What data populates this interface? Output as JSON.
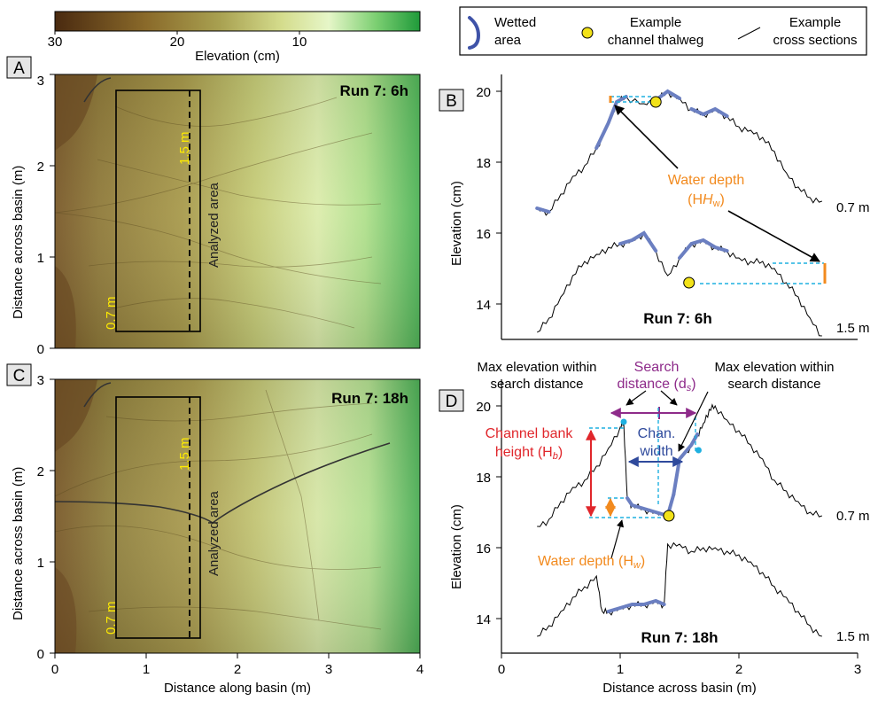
{
  "colorbar": {
    "ticks": [
      "30",
      "20",
      "10"
    ],
    "tick_values": [
      30,
      20,
      10
    ],
    "label": "Elevation (cm)"
  },
  "legend": {
    "wetted": "Wetted\narea",
    "wetted_l1": "Wetted",
    "wetted_l2": "area",
    "thalweg_l1": "Example",
    "thalweg_l2": "channel thalweg",
    "xsec_l1": "Example",
    "xsec_l2": "cross sections"
  },
  "panels": {
    "A": {
      "letter": "A",
      "run": "Run 7: 6h"
    },
    "B": {
      "letter": "B",
      "run": "Run 7: 6h"
    },
    "C": {
      "letter": "C",
      "run": "Run 7: 18h"
    },
    "D": {
      "letter": "D",
      "run": "Run 7: 18h"
    }
  },
  "map_labels": {
    "xsec_07": "0.7 m",
    "xsec_15": "1.5 m",
    "analyzed": "Analyzed area",
    "y_axis": "Distance across basin (m)",
    "x_axis": "Distance along basin (m)",
    "y_ticks": [
      "0",
      "1",
      "2",
      "3"
    ],
    "x_ticks": [
      "0",
      "1",
      "2",
      "3",
      "4"
    ]
  },
  "profile_labels": {
    "y_axis": "Elevation (cm)",
    "x_axis": "Distance across basin (m)",
    "x_ticks": [
      "0",
      "1",
      "2",
      "3"
    ],
    "y_ticks": [
      "14",
      "16",
      "18",
      "20"
    ],
    "curve_07": "0.7 m",
    "curve_15": "1.5 m"
  },
  "annotations_B": {
    "water_depth_l1": "Water depth",
    "water_depth_l2": "(H",
    "water_depth_sub": "w",
    "water_depth_close": ")"
  },
  "annotations_D": {
    "max_elev_left_l1": "Max elevation within",
    "max_elev_left_l2": "search distance",
    "max_elev_right_l1": "Max elevation within",
    "max_elev_right_l2": "search distance",
    "search_l1": "Search",
    "search_l2": "distance (d",
    "search_sub": "s",
    "search_close": ")",
    "bank_l1": "Channel bank",
    "bank_l2": "height (H",
    "bank_sub": "b",
    "bank_close": ")",
    "chan_l1": "Chan.",
    "chan_l2": "width",
    "water_depth": "Water depth (H",
    "water_depth_sub": "w",
    "water_depth_close": ")"
  },
  "colors": {
    "wetted": "#6b7fc1",
    "thalweg": "#f2e218",
    "water_depth": "#f28a1e",
    "dashed": "#1fb0e0",
    "bank": "#e0262b",
    "search": "#8e2b8a",
    "chan_width": "#2f4a9c"
  },
  "chart_data": [
    {
      "panel": "B",
      "type": "line",
      "xlabel": "Distance across basin (m)",
      "ylabel": "Elevation (cm)",
      "xlim": [
        0,
        3
      ],
      "ylim": [
        13,
        20.3
      ],
      "series": [
        {
          "name": "0.7 m",
          "x": [
            0.3,
            0.4,
            0.5,
            0.6,
            0.7,
            0.8,
            0.9,
            0.97,
            1.05,
            1.2,
            1.3,
            1.4,
            1.5,
            1.6,
            1.7,
            1.8,
            1.9,
            2.0,
            2.1,
            2.2,
            2.3,
            2.4,
            2.5,
            2.6,
            2.7
          ],
          "y": [
            16.7,
            16.6,
            17.1,
            17.6,
            17.9,
            18.4,
            19.1,
            19.7,
            19.85,
            19.65,
            19.75,
            20.0,
            19.8,
            19.5,
            19.35,
            19.5,
            19.3,
            19.0,
            18.9,
            18.7,
            18.3,
            17.7,
            17.3,
            17.0,
            16.9
          ]
        },
        {
          "name": "1.5 m",
          "x": [
            0.3,
            0.4,
            0.5,
            0.6,
            0.7,
            0.8,
            0.9,
            1.0,
            1.1,
            1.2,
            1.3,
            1.4,
            1.5,
            1.6,
            1.7,
            1.8,
            1.9,
            2.0,
            2.1,
            2.2,
            2.3,
            2.4,
            2.5,
            2.6,
            2.7
          ],
          "y": [
            13.2,
            13.6,
            14.2,
            14.8,
            15.2,
            15.4,
            15.6,
            15.7,
            15.8,
            16.0,
            15.5,
            14.8,
            15.3,
            15.7,
            15.8,
            15.6,
            15.5,
            15.3,
            15.2,
            15.2,
            15.0,
            14.6,
            14.2,
            13.6,
            13.1
          ]
        }
      ],
      "wetted_x_ranges": [
        [
          0.3,
          0.35
        ],
        [
          0.78,
          0.98
        ],
        [
          1.05,
          1.2
        ],
        [
          1.3,
          1.62
        ],
        [
          1.8,
          1.95
        ],
        [
          1.58,
          2.0
        ],
        [
          0.52,
          0.55
        ]
      ],
      "thalweg_points": [
        {
          "x": 1.3,
          "y": 19.7
        },
        {
          "x": 1.58,
          "y": 14.6
        }
      ]
    },
    {
      "panel": "D",
      "type": "line",
      "xlabel": "Distance across basin (m)",
      "ylabel": "Elevation (cm)",
      "xlim": [
        0,
        3
      ],
      "ylim": [
        13,
        20.3
      ],
      "series": [
        {
          "name": "0.7 m",
          "x": [
            0.3,
            0.4,
            0.5,
            0.6,
            0.7,
            0.8,
            0.9,
            1.0,
            1.03,
            1.06,
            1.1,
            1.2,
            1.3,
            1.4,
            1.45,
            1.5,
            1.6,
            1.65,
            1.7,
            1.75,
            1.8,
            1.9,
            2.0,
            2.1,
            2.2,
            2.3,
            2.4,
            2.5,
            2.6,
            2.7
          ],
          "y": [
            16.6,
            16.8,
            17.3,
            17.7,
            17.9,
            18.3,
            18.8,
            19.4,
            19.55,
            17.4,
            17.2,
            17.1,
            17.0,
            16.9,
            17.5,
            18.5,
            18.9,
            19.2,
            19.5,
            19.9,
            20.0,
            19.6,
            19.3,
            18.9,
            18.5,
            17.9,
            17.6,
            17.3,
            17.0,
            16.9
          ]
        },
        {
          "name": "1.5 m",
          "x": [
            0.3,
            0.4,
            0.5,
            0.6,
            0.7,
            0.8,
            0.85,
            0.9,
            1.0,
            1.1,
            1.2,
            1.3,
            1.37,
            1.4,
            1.5,
            1.6,
            1.7,
            1.8,
            1.9,
            2.0,
            2.1,
            2.2,
            2.3,
            2.4,
            2.5,
            2.6,
            2.7
          ],
          "y": [
            13.5,
            13.8,
            14.2,
            14.6,
            14.9,
            15.2,
            14.2,
            14.2,
            14.3,
            14.4,
            14.4,
            14.5,
            14.4,
            16.1,
            16.1,
            15.9,
            16.0,
            16.0,
            15.9,
            15.8,
            15.6,
            15.3,
            14.9,
            14.6,
            14.2,
            13.8,
            13.5
          ]
        }
      ],
      "thalweg_points": [
        {
          "x": 1.41,
          "y": 16.9
        }
      ],
      "max_points": [
        {
          "x": 1.03,
          "y": 19.55
        },
        {
          "x": 1.66,
          "y": 18.75
        }
      ]
    }
  ]
}
